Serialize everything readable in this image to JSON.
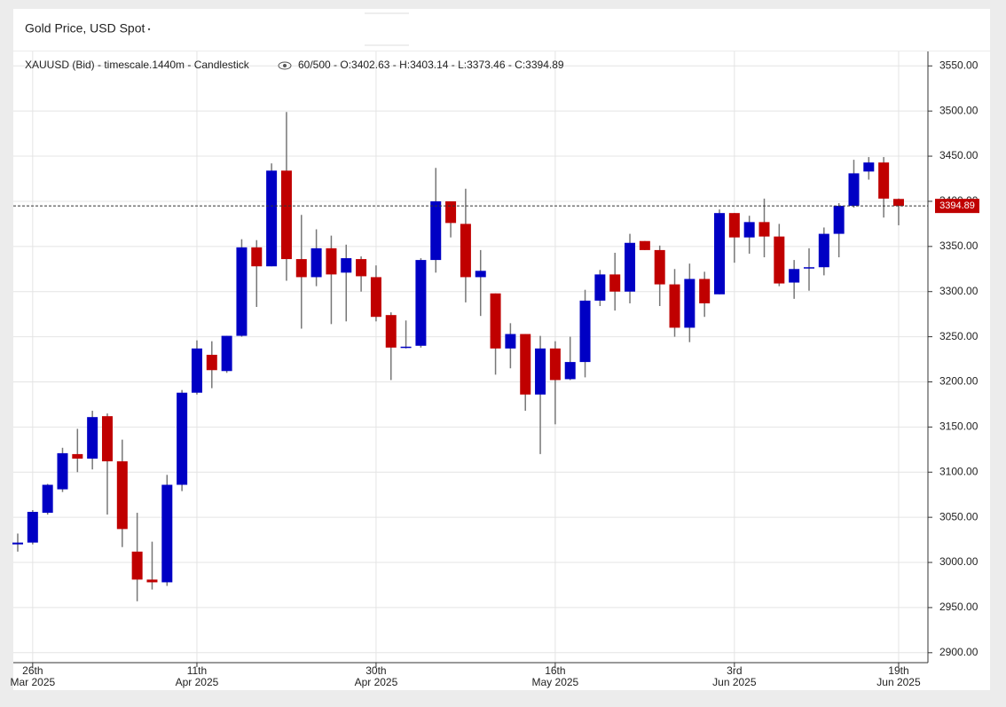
{
  "chart_data": {
    "type": "candlestick",
    "title": "Gold Price, USD Spot",
    "info_symbol": "XAUUSD (Bid) - timescale.1440m - Candlestick",
    "info_values": "60/500 - O:3402.63 - H:3403.14 - L:3373.46 - C:3394.89",
    "categories": [
      null,
      {
        "day": "26th",
        "month": "Mar 2025"
      },
      null,
      null,
      null,
      null,
      null,
      null,
      null,
      null,
      null,
      null,
      {
        "day": "11th",
        "month": "Apr 2025"
      },
      null,
      null,
      null,
      null,
      null,
      null,
      null,
      null,
      null,
      null,
      null,
      {
        "day": "30th",
        "month": "Apr 2025"
      },
      null,
      null,
      null,
      null,
      null,
      null,
      null,
      null,
      null,
      null,
      null,
      {
        "day": "16th",
        "month": "May 2025"
      },
      null,
      null,
      null,
      null,
      null,
      null,
      null,
      null,
      null,
      null,
      null,
      {
        "day": "3rd",
        "month": "Jun 2025"
      },
      null,
      null,
      null,
      null,
      null,
      null,
      null,
      null,
      null,
      null,
      {
        "day": "19th",
        "month": "Jun 2025"
      }
    ],
    "series": {
      "open": [
        3020,
        3022,
        3055,
        3081,
        3120,
        3115,
        3162,
        3112,
        3012,
        2981,
        2978,
        3086,
        3188,
        3230,
        3212,
        3251,
        3349,
        3328,
        3434,
        3336,
        3316,
        3348,
        3321,
        3336,
        3316,
        3274,
        3238,
        3240,
        3335,
        3400,
        3375,
        3316,
        3298,
        3237,
        3253,
        3186,
        3237,
        3203,
        3222,
        3290,
        3319,
        3300,
        3356,
        3346,
        3308,
        3260,
        3314,
        3297,
        3387,
        3360,
        3377,
        3361,
        3310,
        3326,
        3327,
        3364,
        3395,
        3433,
        3443,
        3402.63
      ],
      "high": [
        3032,
        3058,
        3087,
        3127,
        3148,
        3168,
        3165,
        3136,
        3055,
        3023,
        3097,
        3191,
        3246,
        3245,
        3251,
        3358,
        3357,
        3442,
        3499,
        3385,
        3369,
        3362,
        3352,
        3339,
        3329,
        3277,
        3268,
        3337,
        3437,
        3400,
        3414,
        3346,
        3298,
        3265,
        3253,
        3251,
        3245,
        3250,
        3302,
        3324,
        3343,
        3364,
        3356,
        3351,
        3325,
        3331,
        3322,
        3391,
        3387,
        3384,
        3403,
        3375,
        3335,
        3348,
        3371,
        3398,
        3446,
        3449,
        3449,
        3403.14
      ],
      "low": [
        3012,
        3020,
        3053,
        3078,
        3100,
        3103,
        3053,
        3017,
        2957,
        2970,
        2974,
        3079,
        3186,
        3193,
        3210,
        3250,
        3283,
        3328,
        3312,
        3259,
        3306,
        3264,
        3267,
        3300,
        3267,
        3202,
        3237,
        3238,
        3321,
        3360,
        3288,
        3273,
        3208,
        3215,
        3168,
        3120,
        3153,
        3202,
        3205,
        3284,
        3279,
        3287,
        3346,
        3284,
        3250,
        3244,
        3272,
        3297,
        3332,
        3342,
        3338,
        3306,
        3292,
        3301,
        3318,
        3338,
        3393,
        3424,
        3382,
        3373.46
      ],
      "close": [
        3022,
        3056,
        3086,
        3121,
        3115,
        3161,
        3112,
        3037,
        2981,
        2978,
        3086,
        3188,
        3237,
        3213,
        3251,
        3349,
        3328,
        3434,
        3336,
        3316,
        3348,
        3319,
        3337,
        3317,
        3272,
        3238,
        3239,
        3335,
        3400,
        3376,
        3316,
        3323,
        3237,
        3253,
        3186,
        3237,
        3202,
        3222,
        3290,
        3319,
        3300,
        3354,
        3346,
        3308,
        3260,
        3314,
        3287,
        3387,
        3360,
        3377,
        3361,
        3309,
        3325,
        3327,
        3364,
        3395,
        3431,
        3443,
        3403,
        3394.89
      ]
    },
    "up_color": "#0000c4",
    "down_color": "#c00000",
    "wick_color": "#777777",
    "last_price": 3394.89,
    "last_price_label": "3394.89",
    "last_price_color": "#c00000",
    "ylim": [
      2889,
      3566
    ],
    "yticks": [
      {
        "value": 2900,
        "label": "2900.00"
      },
      {
        "value": 2950,
        "label": "2950.00"
      },
      {
        "value": 3000,
        "label": "3000.00"
      },
      {
        "value": 3050,
        "label": "3050.00"
      },
      {
        "value": 3100,
        "label": "3100.00"
      },
      {
        "value": 3150,
        "label": "3150.00"
      },
      {
        "value": 3200,
        "label": "3200.00"
      },
      {
        "value": 3250,
        "label": "3250.00"
      },
      {
        "value": 3300,
        "label": "3300.00"
      },
      {
        "value": 3350,
        "label": "3350.00"
      },
      {
        "value": 3400,
        "label": "3400.00"
      },
      {
        "value": 3450,
        "label": "3450.00"
      },
      {
        "value": 3500,
        "label": "3500.00"
      },
      {
        "value": 3550,
        "label": "3550.00"
      }
    ],
    "grid": true
  }
}
